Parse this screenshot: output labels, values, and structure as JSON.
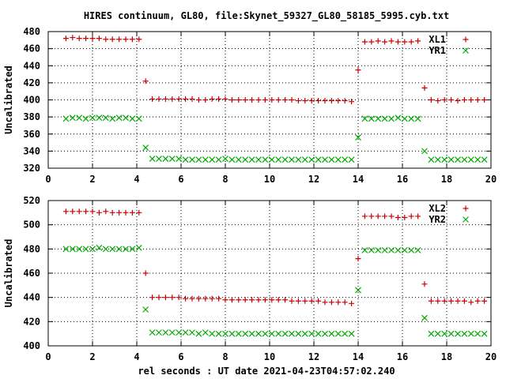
{
  "figure": {
    "title": "HIRES continuum, GL80, file:Skynet_59327_GL80_58185_5995.cyb.txt",
    "xlabel": "rel seconds : UT date 2021-04-23T04:57:02.240"
  },
  "colors": {
    "series_red": "#cc0000",
    "series_green": "#00aa00",
    "axis": "#000000"
  },
  "chart_data": [
    {
      "type": "scatter",
      "title": "HIRES continuum, GL80, file:Skynet_59327_GL80_58185_5995.cyb.txt",
      "xlabel": "",
      "ylabel": "Uncalibrated",
      "xlim": [
        0,
        20
      ],
      "ylim": [
        320,
        480
      ],
      "xticks": [
        0,
        2,
        4,
        6,
        8,
        10,
        12,
        14,
        16,
        18,
        20
      ],
      "yticks": [
        320,
        340,
        360,
        380,
        400,
        420,
        440,
        460,
        480
      ],
      "grid": true,
      "legend": "top-right",
      "x": [
        0.8,
        1.1,
        1.4,
        1.7,
        2.0,
        2.3,
        2.6,
        2.9,
        3.2,
        3.5,
        3.8,
        4.1,
        4.4,
        4.7,
        5.0,
        5.3,
        5.6,
        5.9,
        6.2,
        6.5,
        6.8,
        7.1,
        7.4,
        7.7,
        8.0,
        8.3,
        8.6,
        8.9,
        9.2,
        9.5,
        9.8,
        10.1,
        10.4,
        10.7,
        11.0,
        11.3,
        11.6,
        11.9,
        12.2,
        12.5,
        12.8,
        13.1,
        13.4,
        13.7,
        14.0,
        14.3,
        14.6,
        14.9,
        15.2,
        15.5,
        15.8,
        16.1,
        16.4,
        16.7,
        17.0,
        17.3,
        17.6,
        17.9,
        18.2,
        18.5,
        18.8,
        19.1,
        19.4,
        19.7
      ],
      "series": [
        {
          "name": "XL1",
          "marker": "plus",
          "color": "#cc0000",
          "values": [
            472,
            473,
            472,
            472,
            472,
            472,
            471,
            471,
            471,
            471,
            471,
            471,
            422,
            401,
            401,
            401,
            401,
            401,
            401,
            401,
            400,
            400,
            401,
            401,
            401,
            400,
            400,
            400,
            400,
            400,
            400,
            400,
            400,
            400,
            400,
            399,
            399,
            399,
            399,
            399,
            399,
            399,
            399,
            398,
            435,
            468,
            468,
            469,
            468,
            469,
            468,
            468,
            468,
            469,
            414,
            400,
            399,
            400,
            400,
            399,
            400,
            400,
            400,
            400
          ]
        },
        {
          "name": "YR1",
          "marker": "cross",
          "color": "#00aa00",
          "values": [
            378,
            379,
            379,
            378,
            379,
            379,
            379,
            378,
            379,
            379,
            378,
            378,
            344,
            331,
            331,
            331,
            331,
            331,
            330,
            330,
            330,
            330,
            330,
            330,
            331,
            330,
            330,
            330,
            330,
            330,
            330,
            330,
            330,
            330,
            330,
            330,
            330,
            330,
            330,
            330,
            330,
            330,
            330,
            330,
            356,
            378,
            378,
            378,
            378,
            378,
            379,
            378,
            378,
            378,
            340,
            330,
            330,
            330,
            330,
            330,
            330,
            330,
            330,
            330
          ]
        }
      ]
    },
    {
      "type": "scatter",
      "title": "",
      "xlabel": "rel seconds : UT date 2021-04-23T04:57:02.240",
      "ylabel": "Uncalibrated",
      "xlim": [
        0,
        20
      ],
      "ylim": [
        400,
        520
      ],
      "xticks": [
        0,
        2,
        4,
        6,
        8,
        10,
        12,
        14,
        16,
        18,
        20
      ],
      "yticks": [
        400,
        420,
        440,
        460,
        480,
        500,
        520
      ],
      "grid": true,
      "legend": "top-right",
      "x": [
        0.8,
        1.1,
        1.4,
        1.7,
        2.0,
        2.3,
        2.6,
        2.9,
        3.2,
        3.5,
        3.8,
        4.1,
        4.4,
        4.7,
        5.0,
        5.3,
        5.6,
        5.9,
        6.2,
        6.5,
        6.8,
        7.1,
        7.4,
        7.7,
        8.0,
        8.3,
        8.6,
        8.9,
        9.2,
        9.5,
        9.8,
        10.1,
        10.4,
        10.7,
        11.0,
        11.3,
        11.6,
        11.9,
        12.2,
        12.5,
        12.8,
        13.1,
        13.4,
        13.7,
        14.0,
        14.3,
        14.6,
        14.9,
        15.2,
        15.5,
        15.8,
        16.1,
        16.4,
        16.7,
        17.0,
        17.3,
        17.6,
        17.9,
        18.2,
        18.5,
        18.8,
        19.1,
        19.4,
        19.7
      ],
      "series": [
        {
          "name": "XL2",
          "marker": "plus",
          "color": "#cc0000",
          "values": [
            511,
            511,
            511,
            511,
            511,
            510,
            511,
            510,
            510,
            510,
            510,
            510,
            460,
            440,
            440,
            440,
            440,
            440,
            439,
            439,
            439,
            439,
            439,
            439,
            438,
            438,
            438,
            438,
            438,
            438,
            438,
            438,
            438,
            438,
            437,
            437,
            437,
            437,
            437,
            436,
            436,
            436,
            436,
            435,
            472,
            507,
            507,
            507,
            507,
            507,
            506,
            506,
            507,
            507,
            451,
            437,
            437,
            437,
            437,
            437,
            437,
            436,
            437,
            437
          ]
        },
        {
          "name": "YR2",
          "marker": "cross",
          "color": "#00aa00",
          "values": [
            480,
            480,
            480,
            480,
            480,
            481,
            480,
            480,
            480,
            480,
            480,
            481,
            430,
            411,
            411,
            411,
            411,
            411,
            411,
            411,
            410,
            411,
            410,
            410,
            410,
            410,
            410,
            410,
            410,
            410,
            410,
            410,
            410,
            410,
            410,
            410,
            410,
            410,
            410,
            410,
            410,
            410,
            410,
            410,
            446,
            479,
            479,
            479,
            479,
            479,
            479,
            479,
            479,
            479,
            423,
            410,
            410,
            410,
            410,
            410,
            410,
            410,
            410,
            410
          ]
        }
      ]
    }
  ]
}
